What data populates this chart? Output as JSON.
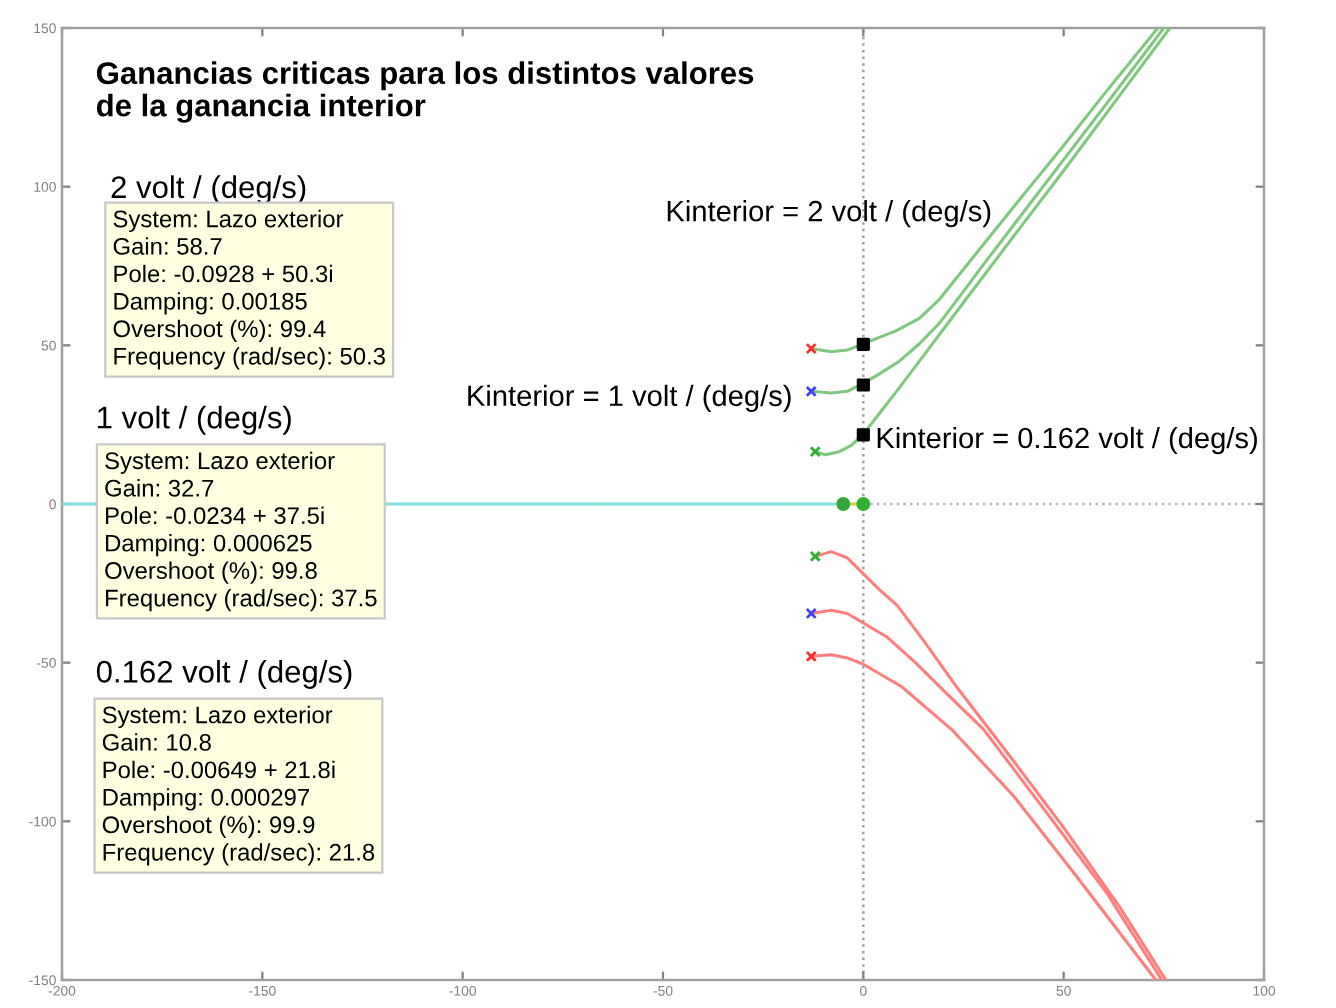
{
  "chart_data": {
    "type": "line",
    "title": "Ganancias criticas para los distintos valores\nde la ganancia interior",
    "xlim": [
      -200,
      100
    ],
    "ylim": [
      -150,
      150
    ],
    "xticks": [
      -200,
      -150,
      -100,
      -50,
      0,
      50,
      100
    ],
    "yticks": [
      -150,
      -100,
      -50,
      0,
      50,
      100,
      150
    ],
    "ref_lines": [
      {
        "axis": "x",
        "value": 0,
        "color": "#a0a0a0",
        "line_style": "dotted"
      },
      {
        "axis": "y",
        "value": 0,
        "color": "#b8b8b8",
        "line_style": "dotted"
      }
    ],
    "annotations": [
      "Kinterior = 2 volt / (deg/s)",
      "Kinterior = 1 volt / (deg/s)",
      {
        "text": "Kinterior = 0.162 volt / (deg/s)",
        "x": 3,
        "y": 20
      },
      "2 volt / (deg/s)",
      "System: Lazo exterior\nGain: 58.7\nPole: -0.0928 + 50.3i\nDamping: 0.00185\nOvershoot (%): 99.4\nFrequency (rad/sec): 50.3",
      "1 volt / (deg/s)",
      "System: Lazo exterior\nGain: 32.7\nPole: -0.0234 + 37.5i\nDamping: 0.000625\nOvershoot (%): 99.8\nFrequency (rad/sec): 37.5",
      "0.162 volt / (deg/s)",
      "System: Lazo exterior\nGain: 10.8\nPole: -0.00649 + 21.8i\nDamping: 0.000297\nOvershoot (%): 99.9\nFrequency (rad/sec): 21.8"
    ],
    "series": [
      {
        "color": "#80e0e0",
        "x": [
          -200,
          -5
        ],
        "values": [
          0,
          0
        ]
      },
      {
        "color": "#c8d850",
        "x": [
          -5,
          0
        ],
        "values": [
          0,
          0
        ]
      },
      {
        "color": "#80c880",
        "x": [
          -13,
          -8,
          -4,
          0,
          4,
          8,
          14,
          19,
          25,
          40,
          50,
          60,
          73.5
        ],
        "values": [
          49,
          48,
          48.5,
          50.5,
          52.5,
          54.5,
          58.5,
          64.5,
          74,
          97.5,
          113,
          129,
          150
        ]
      },
      {
        "color": "#80c880",
        "x": [
          -13,
          -8,
          -4,
          0,
          4,
          9,
          14,
          19,
          25,
          30,
          40,
          50,
          60,
          75
        ],
        "values": [
          35.5,
          35,
          35.5,
          38,
          41,
          45,
          50.5,
          57,
          67,
          75.5,
          92,
          108.5,
          125,
          150
        ]
      },
      {
        "color": "#80c880",
        "x": [
          -12,
          -9.5,
          -6,
          -3,
          0,
          4,
          8,
          14,
          25,
          40,
          50,
          60,
          76.5
        ],
        "values": [
          16.5,
          15.5,
          16.5,
          18.5,
          22,
          28.5,
          35,
          45,
          63.5,
          88.5,
          105,
          122,
          150
        ]
      },
      {
        "color": "#ff7f7f",
        "x": [
          -12,
          -8,
          -4,
          0,
          4,
          8.5,
          15,
          23.5,
          37.5,
          50,
          64,
          75.5
        ],
        "values": [
          -16.5,
          -15,
          -17,
          -22,
          -27,
          -32,
          -43,
          -58,
          -81,
          -102,
          -127,
          -150
        ]
      },
      {
        "color": "#ff7f7f",
        "x": [
          -13,
          -8,
          -4,
          0,
          6,
          13,
          21,
          30,
          45,
          61,
          74.5
        ],
        "values": [
          -34.5,
          -33.5,
          -34.5,
          -37.5,
          -42,
          -50,
          -60,
          -71,
          -96,
          -123,
          -150
        ]
      },
      {
        "color": "#ff7f7f",
        "x": [
          -13,
          -8,
          -4,
          0,
          9.5,
          22,
          37.5,
          53,
          73
        ],
        "values": [
          -48,
          -47.5,
          -48.5,
          -50.5,
          -57.5,
          -71,
          -92,
          -117,
          -150
        ]
      },
      {
        "type": "scatter",
        "marker": "circle",
        "color": "#30b030",
        "x": [
          -5,
          0
        ],
        "values": [
          0,
          0
        ]
      },
      {
        "type": "scatter",
        "marker": "cross",
        "color": "#ff3030",
        "x": [
          -13,
          -13,
          -5
        ],
        "values": [
          49,
          -48,
          0
        ]
      },
      {
        "type": "scatter",
        "marker": "cross",
        "color": "#4040ff",
        "x": [
          -13,
          -13,
          -5
        ],
        "values": [
          35.5,
          -34.5,
          0
        ]
      },
      {
        "type": "scatter",
        "marker": "cross",
        "color": "#30b030",
        "x": [
          -12,
          -12,
          -5
        ],
        "values": [
          16.5,
          -16.5,
          0
        ]
      },
      {
        "type": "scatter",
        "marker": "square",
        "color": "#000000",
        "x": [
          0,
          0,
          0
        ],
        "values": [
          50.3,
          37.5,
          21.8
        ]
      }
    ]
  }
}
